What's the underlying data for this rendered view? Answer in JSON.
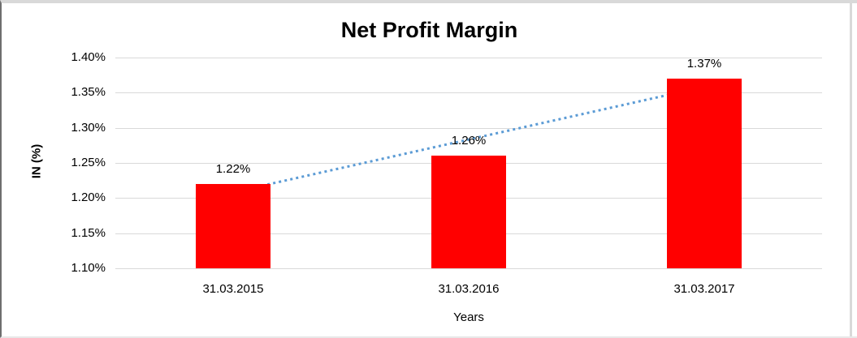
{
  "chart_data": {
    "type": "bar",
    "title": "Net Profit Margin",
    "categories": [
      "31.03.2015",
      "31.03.2016",
      "31.03.2017"
    ],
    "values": [
      1.22,
      1.26,
      1.37
    ],
    "data_labels": [
      "1.22%",
      "1.26%",
      "1.37%"
    ],
    "xlabel": "Years",
    "ylabel": "IN (%)",
    "ylim": [
      1.1,
      1.4
    ],
    "ytick_step": 0.05,
    "ytick_labels": [
      "1.10%",
      "1.15%",
      "1.20%",
      "1.25%",
      "1.30%",
      "1.35%",
      "1.40%"
    ],
    "grid": true,
    "legend": "none",
    "bar_color": "#ff0000",
    "gridline_color": "#d9d9d9",
    "text_color": "#000000",
    "trendline": {
      "type": "linear",
      "style": "dotted",
      "color": "#5b9bd5",
      "span": "first-to-last-category"
    }
  }
}
